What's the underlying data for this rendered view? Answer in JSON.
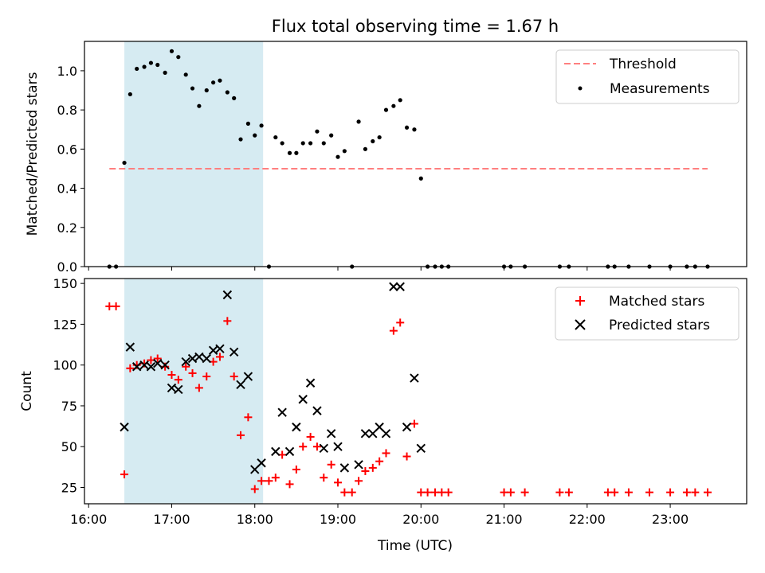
{
  "title": "Flux total observing time = 1.67 h",
  "colors": {
    "threshold": "#ff7f7f",
    "measurement": "#000000",
    "matched": "#ff0000",
    "predicted": "#000000",
    "highlight": "#add8e6"
  },
  "chart_data": [
    {
      "type": "scatter",
      "ylabel": "Matched/Predicted stars",
      "xlim_hours": [
        15.95,
        23.92
      ],
      "ylim": [
        0,
        1.15
      ],
      "yticks": [
        "0.0",
        "0.2",
        "0.4",
        "0.6",
        "0.8",
        "1.0"
      ],
      "ytick_values": [
        0,
        0.2,
        0.4,
        0.6,
        0.8,
        1.0
      ],
      "highlight_span_hours": [
        16.43,
        18.1
      ],
      "legend_position": "upper right",
      "threshold": {
        "name": "Threshold",
        "y": 0.5,
        "x_range_hours": [
          16.25,
          23.45
        ]
      },
      "series": [
        {
          "name": "Measurements",
          "points": [
            [
              16.25,
              0.0
            ],
            [
              16.33,
              0.0
            ],
            [
              16.43,
              0.53
            ],
            [
              16.5,
              0.88
            ],
            [
              16.58,
              1.01
            ],
            [
              16.67,
              1.02
            ],
            [
              16.75,
              1.04
            ],
            [
              16.83,
              1.03
            ],
            [
              16.92,
              0.99
            ],
            [
              17.0,
              1.1
            ],
            [
              17.08,
              1.07
            ],
            [
              17.17,
              0.98
            ],
            [
              17.25,
              0.91
            ],
            [
              17.33,
              0.82
            ],
            [
              17.42,
              0.9
            ],
            [
              17.5,
              0.94
            ],
            [
              17.58,
              0.95
            ],
            [
              17.67,
              0.89
            ],
            [
              17.75,
              0.86
            ],
            [
              17.83,
              0.65
            ],
            [
              17.92,
              0.73
            ],
            [
              18.0,
              0.67
            ],
            [
              18.08,
              0.72
            ],
            [
              18.17,
              0.0
            ],
            [
              18.25,
              0.66
            ],
            [
              18.33,
              0.63
            ],
            [
              18.42,
              0.58
            ],
            [
              18.5,
              0.58
            ],
            [
              18.58,
              0.63
            ],
            [
              18.67,
              0.63
            ],
            [
              18.75,
              0.69
            ],
            [
              18.83,
              0.63
            ],
            [
              18.92,
              0.67
            ],
            [
              19.0,
              0.56
            ],
            [
              19.08,
              0.59
            ],
            [
              19.17,
              0.0
            ],
            [
              19.25,
              0.74
            ],
            [
              19.33,
              0.6
            ],
            [
              19.42,
              0.64
            ],
            [
              19.5,
              0.66
            ],
            [
              19.58,
              0.8
            ],
            [
              19.67,
              0.82
            ],
            [
              19.75,
              0.85
            ],
            [
              19.83,
              0.71
            ],
            [
              19.92,
              0.7
            ],
            [
              20.0,
              0.45
            ],
            [
              20.08,
              0.0
            ],
            [
              20.17,
              0.0
            ],
            [
              20.25,
              0.0
            ],
            [
              20.33,
              0.0
            ],
            [
              21.0,
              0.0
            ],
            [
              21.08,
              0.0
            ],
            [
              21.25,
              0.0
            ],
            [
              21.67,
              0.0
            ],
            [
              21.78,
              0.0
            ],
            [
              22.25,
              0.0
            ],
            [
              22.33,
              0.0
            ],
            [
              22.5,
              0.0
            ],
            [
              22.75,
              0.0
            ],
            [
              23.0,
              0.0
            ],
            [
              23.2,
              0.0
            ],
            [
              23.3,
              0.0
            ],
            [
              23.45,
              0.0
            ]
          ]
        }
      ]
    },
    {
      "type": "scatter",
      "xlabel": "Time (UTC)",
      "ylabel": "Count",
      "xlim_hours": [
        15.95,
        23.92
      ],
      "ylim": [
        15,
        153
      ],
      "yticks": [
        "25",
        "50",
        "75",
        "100",
        "125",
        "150"
      ],
      "ytick_values": [
        25,
        50,
        75,
        100,
        125,
        150
      ],
      "xticks": [
        "16:00",
        "17:00",
        "18:00",
        "19:00",
        "20:00",
        "21:00",
        "22:00",
        "23:00"
      ],
      "xtick_values": [
        16,
        17,
        18,
        19,
        20,
        21,
        22,
        23
      ],
      "highlight_span_hours": [
        16.43,
        18.1
      ],
      "legend_position": "upper right",
      "series": [
        {
          "name": "Matched stars",
          "points": [
            [
              16.25,
              136
            ],
            [
              16.33,
              136
            ],
            [
              16.43,
              33
            ],
            [
              16.5,
              98
            ],
            [
              16.58,
              100
            ],
            [
              16.67,
              101
            ],
            [
              16.75,
              103
            ],
            [
              16.83,
              104
            ],
            [
              16.92,
              99
            ],
            [
              17.0,
              94
            ],
            [
              17.08,
              91
            ],
            [
              17.17,
              99
            ],
            [
              17.25,
              95
            ],
            [
              17.33,
              86
            ],
            [
              17.42,
              93
            ],
            [
              17.5,
              102
            ],
            [
              17.58,
              105
            ],
            [
              17.67,
              127
            ],
            [
              17.75,
              93
            ],
            [
              17.83,
              57
            ],
            [
              17.92,
              68
            ],
            [
              18.0,
              24
            ],
            [
              18.08,
              29
            ],
            [
              18.17,
              29
            ],
            [
              18.25,
              31
            ],
            [
              18.33,
              45
            ],
            [
              18.42,
              27
            ],
            [
              18.5,
              36
            ],
            [
              18.58,
              50
            ],
            [
              18.67,
              56
            ],
            [
              18.75,
              50
            ],
            [
              18.83,
              31
            ],
            [
              18.92,
              39
            ],
            [
              19.0,
              28
            ],
            [
              19.08,
              22
            ],
            [
              19.17,
              22
            ],
            [
              19.25,
              29
            ],
            [
              19.33,
              35
            ],
            [
              19.42,
              37
            ],
            [
              19.5,
              41
            ],
            [
              19.58,
              46
            ],
            [
              19.67,
              121
            ],
            [
              19.75,
              126
            ],
            [
              19.83,
              44
            ],
            [
              19.92,
              64
            ],
            [
              20.0,
              22
            ],
            [
              20.08,
              22
            ],
            [
              20.17,
              22
            ],
            [
              20.25,
              22
            ],
            [
              20.33,
              22
            ],
            [
              21.0,
              22
            ],
            [
              21.08,
              22
            ],
            [
              21.25,
              22
            ],
            [
              21.67,
              22
            ],
            [
              21.78,
              22
            ],
            [
              22.25,
              22
            ],
            [
              22.33,
              22
            ],
            [
              22.5,
              22
            ],
            [
              22.75,
              22
            ],
            [
              23.0,
              22
            ],
            [
              23.2,
              22
            ],
            [
              23.3,
              22
            ],
            [
              23.45,
              22
            ]
          ]
        },
        {
          "name": "Predicted stars",
          "points": [
            [
              16.43,
              62
            ],
            [
              16.5,
              111
            ],
            [
              16.58,
              99
            ],
            [
              16.67,
              100
            ],
            [
              16.75,
              99
            ],
            [
              16.83,
              101
            ],
            [
              16.92,
              100
            ],
            [
              17.0,
              86
            ],
            [
              17.08,
              85
            ],
            [
              17.17,
              102
            ],
            [
              17.25,
              104
            ],
            [
              17.33,
              105
            ],
            [
              17.42,
              104
            ],
            [
              17.5,
              109
            ],
            [
              17.58,
              110
            ],
            [
              17.67,
              143
            ],
            [
              17.75,
              108
            ],
            [
              17.83,
              88
            ],
            [
              17.92,
              93
            ],
            [
              18.0,
              36
            ],
            [
              18.08,
              40
            ],
            [
              18.25,
              47
            ],
            [
              18.33,
              71
            ],
            [
              18.42,
              47
            ],
            [
              18.5,
              62
            ],
            [
              18.58,
              79
            ],
            [
              18.67,
              89
            ],
            [
              18.75,
              72
            ],
            [
              18.83,
              49
            ],
            [
              18.92,
              58
            ],
            [
              19.0,
              50
            ],
            [
              19.08,
              37
            ],
            [
              19.25,
              39
            ],
            [
              19.33,
              58
            ],
            [
              19.42,
              58
            ],
            [
              19.5,
              62
            ],
            [
              19.58,
              58
            ],
            [
              19.67,
              148
            ],
            [
              19.75,
              148
            ],
            [
              19.83,
              62
            ],
            [
              19.92,
              92
            ],
            [
              20.0,
              49
            ]
          ]
        }
      ]
    }
  ]
}
